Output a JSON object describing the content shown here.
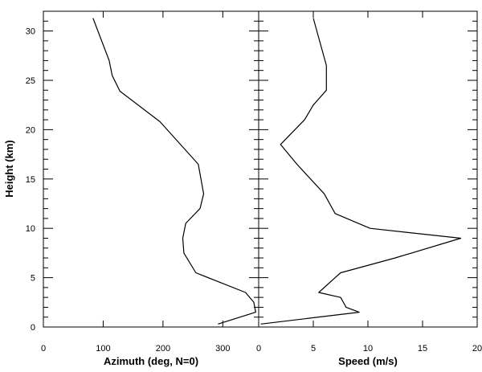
{
  "chart_data": [
    {
      "type": "line",
      "title": "",
      "xlabel": "Azimuth (deg, N=0)",
      "ylabel": "Height (km)",
      "xlim": [
        0,
        360
      ],
      "ylim": [
        0,
        32
      ],
      "xticks": [
        0,
        100,
        200,
        300
      ],
      "yticks": [
        0,
        5,
        10,
        15,
        20,
        25,
        30
      ],
      "grid": false,
      "series": [
        {
          "x": [
            292,
            355,
            352,
            338,
            255,
            235,
            233,
            238,
            262,
            268,
            259,
            195,
            128,
            115,
            110,
            83
          ],
          "y": [
            0.3,
            1.5,
            2.5,
            3.5,
            5.5,
            7.5,
            9.0,
            10.5,
            12.0,
            13.5,
            16.5,
            20.8,
            23.9,
            25.5,
            27.0,
            31.3
          ]
        }
      ]
    },
    {
      "type": "line",
      "title": "",
      "xlabel": "Speed (m/s)",
      "ylabel": "",
      "xlim": [
        0,
        20
      ],
      "ylim": [
        0,
        32
      ],
      "xticks": [
        0,
        5,
        10,
        15,
        20
      ],
      "yticks": [
        0,
        5,
        10,
        15,
        20,
        25,
        30
      ],
      "grid": false,
      "series": [
        {
          "x": [
            0.2,
            9.2,
            8.0,
            7.5,
            5.5,
            7.0,
            7.5,
            12.5,
            18.5,
            10.2,
            7.0,
            6.0,
            3.5,
            2.0,
            4.2,
            5.0,
            6.2,
            6.2,
            5.0
          ],
          "y": [
            0.3,
            1.5,
            2.0,
            3.0,
            3.5,
            5.0,
            5.5,
            7.0,
            9.0,
            10.0,
            11.5,
            13.5,
            16.5,
            18.5,
            21.0,
            22.5,
            24.0,
            26.5,
            31.3
          ]
        }
      ]
    }
  ]
}
